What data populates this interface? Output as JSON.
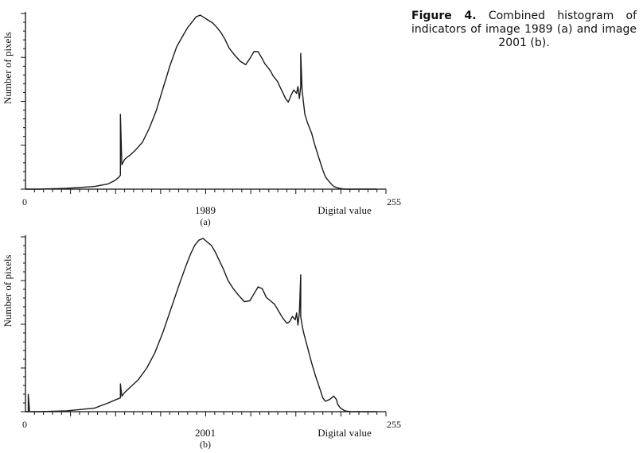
{
  "caption": {
    "label": "Figure 4.",
    "text": "Combined histogram of indicators of image 1989 (a) and image 2001 (b)."
  },
  "chart_data": [
    {
      "type": "line",
      "panel": "(a)",
      "title": "1989",
      "xlabel": "Digital value",
      "ylabel": "Number of pixels",
      "x_tick_labels": [
        "0",
        "255"
      ],
      "xlim": [
        0,
        255
      ],
      "ylim": [
        0,
        100
      ],
      "x": [
        0,
        10,
        30,
        50,
        60,
        65,
        68,
        69,
        69,
        70,
        72,
        74,
        76,
        80,
        85,
        90,
        95,
        100,
        105,
        110,
        115,
        118,
        121,
        124,
        127,
        130,
        133,
        136,
        139,
        142,
        145,
        148,
        152,
        156,
        160,
        163,
        166,
        169,
        172,
        174,
        176,
        178,
        180,
        183,
        186,
        189,
        191,
        193,
        195,
        197,
        198,
        199,
        200,
        200,
        201,
        202,
        203,
        205,
        208,
        210,
        212,
        214,
        216,
        218,
        221,
        224,
        228,
        232,
        240,
        255
      ],
      "y": [
        0,
        0,
        0.5,
        1.5,
        3,
        5,
        7,
        8,
        43,
        14,
        17,
        18.5,
        19.5,
        22.5,
        27,
        35,
        45,
        58,
        71,
        82,
        89,
        93,
        96,
        99,
        100,
        98.5,
        97,
        95.5,
        93,
        90,
        86,
        81,
        77,
        73.5,
        71.5,
        75,
        79,
        79,
        75,
        72,
        70,
        68,
        65,
        62,
        57,
        52,
        50,
        54,
        57,
        55,
        59,
        52,
        59,
        78,
        57,
        50,
        43,
        38,
        32,
        26,
        21,
        16,
        11,
        7,
        4,
        1.5,
        0.5,
        0,
        0,
        0
      ]
    },
    {
      "type": "line",
      "panel": "(b)",
      "title": "2001",
      "xlabel": "Digital value",
      "ylabel": "Number of pixels",
      "x_tick_labels": [
        "0",
        "255"
      ],
      "xlim": [
        0,
        255
      ],
      "ylim": [
        0,
        100
      ],
      "x": [
        0,
        2,
        2,
        3,
        4,
        10,
        30,
        50,
        60,
        66,
        69,
        69,
        70,
        72,
        76,
        82,
        88,
        94,
        100,
        106,
        112,
        117,
        120,
        123,
        126,
        129,
        132,
        135,
        138,
        141,
        144,
        147,
        151,
        155,
        159,
        163,
        166,
        169,
        172,
        175,
        178,
        181,
        184,
        187,
        190,
        192,
        194,
        196,
        197,
        198,
        199,
        200,
        200,
        201,
        202,
        205,
        208,
        211,
        214,
        216,
        218,
        221,
        224,
        226,
        227,
        229,
        232,
        236,
        240,
        255
      ],
      "y": [
        0,
        0,
        10,
        0,
        0,
        0,
        0.5,
        2,
        5,
        7,
        8,
        16,
        9,
        11,
        14,
        18.5,
        25,
        34,
        46,
        60,
        74,
        85,
        91,
        96,
        99,
        100,
        98,
        96,
        92,
        87,
        82,
        76,
        71,
        67,
        63.5,
        64,
        68,
        72,
        71,
        66,
        64,
        62,
        58,
        54,
        51,
        52,
        55,
        53,
        57,
        50,
        57,
        79,
        55,
        50,
        46,
        37,
        28,
        20,
        13,
        8,
        6,
        7,
        9,
        7,
        4,
        2,
        0.5,
        0,
        0,
        0
      ]
    }
  ]
}
